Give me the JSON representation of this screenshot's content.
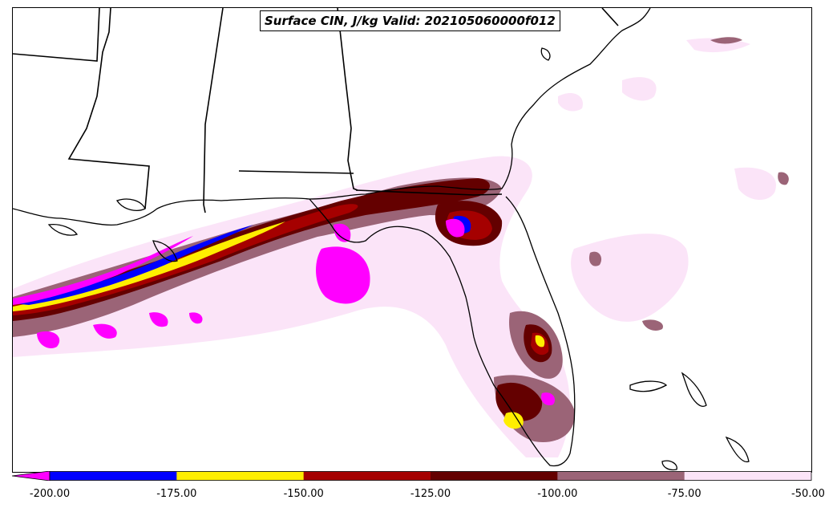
{
  "title": "Surface CIN, J/kg Valid: 202105060000f012",
  "colorbar": {
    "ticks": [
      "-200.00",
      "-175.00",
      "-150.00",
      "-125.00",
      "-100.00",
      "-75.00",
      "-50.00"
    ],
    "bins": [
      {
        "from": -200,
        "to": -175,
        "color": "#0000ff"
      },
      {
        "from": -175,
        "to": -150,
        "color": "#ffee00"
      },
      {
        "from": -150,
        "to": -125,
        "color": "#a50000"
      },
      {
        "from": -125,
        "to": -100,
        "color": "#640000"
      },
      {
        "from": -100,
        "to": -75,
        "color": "#9b6477"
      },
      {
        "from": -75,
        "to": -50,
        "color": "#fbe4f8"
      }
    ],
    "under_color": "#ff00ff"
  },
  "map": {
    "region": "Southeastern United States and Gulf of Mexico",
    "coastline_color": "#000000",
    "background": "#ffffff"
  }
}
